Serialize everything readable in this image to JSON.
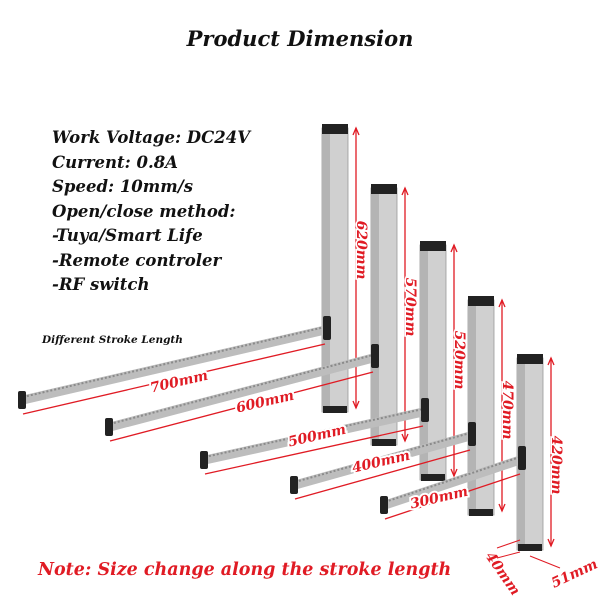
{
  "title": "Product Dimension",
  "specs": [
    "Work Voltage: DC24V",
    "Current: 0.8A",
    "Speed: 10mm/s",
    "Open/close method:",
    "-Tuya/Smart Life",
    "-Remote controler",
    "-RF switch"
  ],
  "stroke_title": "Different Stroke Length",
  "note": "Note: Size change along the stroke length",
  "colors": {
    "dimension": "#e01b24",
    "column": "#c8c8c8",
    "cap": "#222222"
  },
  "actuators": [
    {
      "height": "620mm",
      "stroke": "700mm"
    },
    {
      "height": "570mm",
      "stroke": "600mm"
    },
    {
      "height": "520mm",
      "stroke": "500mm"
    },
    {
      "height": "470mm",
      "stroke": "400mm"
    },
    {
      "height": "420mm",
      "stroke": "300mm"
    }
  ],
  "section": {
    "depth": "40mm",
    "width": "51mm"
  }
}
